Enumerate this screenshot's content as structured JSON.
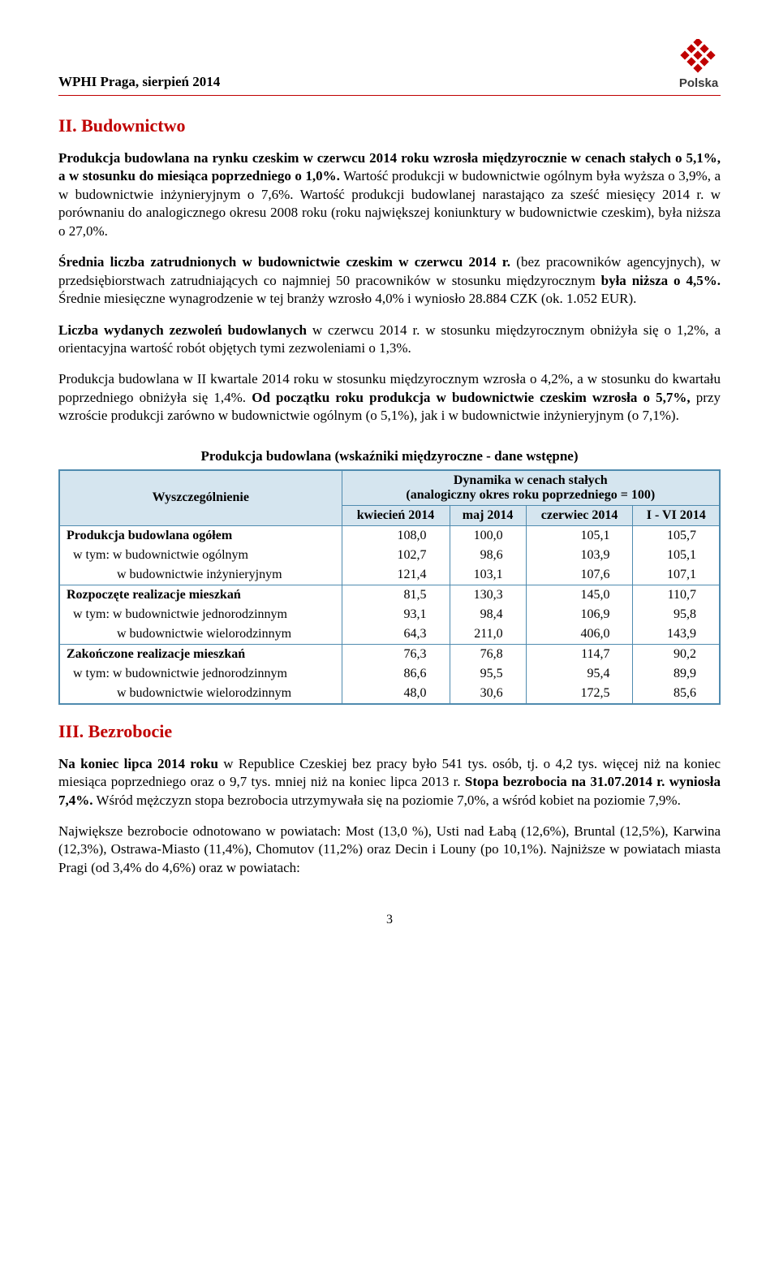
{
  "header": {
    "left": "WPHI Praga, sierpień 2014",
    "logo_text": "Polska",
    "logo_colors": {
      "red": "#c00000",
      "dark": "#3a3a3a"
    },
    "rule_color": "#c00000"
  },
  "section2": {
    "title": "II. Budownictwo",
    "p1_a": "Produkcja budowlana na rynku czeskim w czerwcu 2014 roku wzrosła międzyrocznie w cenach stałych o 5,1%, a w stosunku do miesiąca poprzedniego o 1,0%.",
    "p1_b": " Wartość produkcji w budownictwie ogólnym była wyższa o 3,9%, a w budownictwie inżynieryjnym o 7,6%. Wartość produkcji budowlanej narastająco za sześć miesięcy 2014 r. w porównaniu do analogicznego okresu 2008 roku (roku największej koniunktury w budownictwie czeskim), była niższa o 27,0%.",
    "p2_a": "Średnia liczba zatrudnionych w budownictwie czeskim w czerwcu  2014 r.",
    "p2_b": " (bez pracowników agencyjnych), w przedsiębiorstwach zatrudniających co najmniej 50 pracowników w stosunku międzyrocznym ",
    "p2_c": "była niższa o 4,5%.",
    "p2_d": " Średnie miesięczne wynagrodzenie w tej branży wzrosło 4,0% i wyniosło 28.884 CZK (ok. 1.052 EUR).",
    "p3_a": "Liczba wydanych zezwoleń budowlanych",
    "p3_b": " w czerwcu 2014 r. w stosunku międzyrocznym obniżyła się o 1,2%, a orientacyjna wartość robót objętych tymi zezwoleniami o 1,3%.",
    "p4_a": "Produkcja budowlana w II kwartale 2014 roku w stosunku międzyrocznym wzrosła o 4,2%, a w stosunku do kwartału poprzedniego obniżyła się 1,4%. ",
    "p4_b": "Od początku roku produkcja w budownictwie czeskim wzrosła o 5,7%,",
    "p4_c": " przy wzroście produkcji zarówno w budownictwie ogólnym  (o 5,1%), jak i w budownictwie inżynieryjnym (o 7,1%)."
  },
  "table": {
    "title": "Produkcja budowlana (wskaźniki międzyroczne - dane wstępne)",
    "row_header": "Wyszczególnienie",
    "col_header_top": "Dynamika w cenach stałych\n(analogiczny okres roku poprzedniego = 100)",
    "cols": [
      "kwiecień 2014",
      "maj 2014",
      "czerwiec 2014",
      "I - VI 2014"
    ],
    "header_bg": "#d5e5ef",
    "border_color": "#4f8baf",
    "rows": [
      {
        "label": "Produkcja budowlana ogółem",
        "bold": true,
        "indent": 0,
        "vals": [
          "108,0",
          "100,0",
          "105,1",
          "105,7"
        ]
      },
      {
        "label": "w tym:  w budownictwie ogólnym",
        "bold": false,
        "indent": 1,
        "vals": [
          "102,7",
          "98,6",
          "103,9",
          "105,1"
        ]
      },
      {
        "label": "w budownictwie inżynieryjnym",
        "bold": false,
        "indent": 2,
        "vals": [
          "121,4",
          "103,1",
          "107,6",
          "107,1"
        ]
      },
      {
        "label": "Rozpoczęte realizacje mieszkań",
        "bold": true,
        "indent": 0,
        "vals": [
          "81,5",
          "130,3",
          "145,0",
          "110,7"
        ]
      },
      {
        "label": "w tym:  w budownictwie jednorodzinnym",
        "bold": false,
        "indent": 1,
        "vals": [
          "93,1",
          "98,4",
          "106,9",
          "95,8"
        ]
      },
      {
        "label": "w budownictwie wielorodzinnym",
        "bold": false,
        "indent": 2,
        "vals": [
          "64,3",
          "211,0",
          "406,0",
          "143,9"
        ]
      },
      {
        "label": "Zakończone realizacje mieszkań",
        "bold": true,
        "indent": 0,
        "vals": [
          "76,3",
          "76,8",
          "114,7",
          "90,2"
        ]
      },
      {
        "label": "w tym:  w budownictwie jednorodzinnym",
        "bold": false,
        "indent": 1,
        "vals": [
          "86,6",
          "95,5",
          "95,4",
          "89,9"
        ]
      },
      {
        "label": "w budownictwie wielorodzinnym",
        "bold": false,
        "indent": 2,
        "vals": [
          "48,0",
          "30,6",
          "172,5",
          "85,6"
        ]
      }
    ]
  },
  "section3": {
    "title": "III. Bezrobocie",
    "p1_a": "Na koniec lipca  2014 roku",
    "p1_b": " w Republice Czeskiej bez pracy było 541 tys. osób, tj. o 4,2 tys. więcej  niż na koniec miesiąca poprzedniego oraz o 9,7 tys. mniej niż na koniec lipca 2013 r. ",
    "p1_c": "Stopa bezrobocia na 31.07.2014 r. wyniosła 7,4%.",
    "p1_d": " Wśród mężczyzn stopa bezrobocia utrzymywała się na poziomie 7,0%, a wśród kobiet na poziomie 7,9%.",
    "p2": "Największe bezrobocie odnotowano w powiatach: Most (13,0 %), Usti nad Łabą (12,6%), Bruntal (12,5%), Karwina (12,3%), Ostrawa-Miasto (11,4%), Chomutov (11,2%) oraz Decin i Louny (po 10,1%). Najniższe w powiatach miasta Pragi (od 3,4% do 4,6%) oraz w powiatach:"
  },
  "page_number": "3"
}
